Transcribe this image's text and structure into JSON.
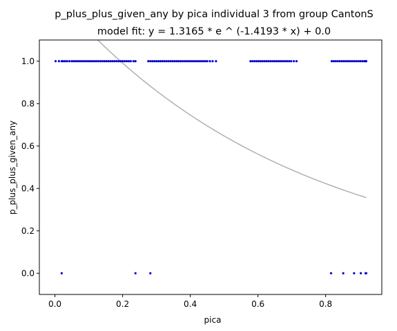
{
  "chart_data": {
    "type": "scatter",
    "title": "p_plus_plus_given_any by pica individual 3 from group CantonS",
    "subtitle": "model fit: y = 1.3165 * e ^ (-1.4193 * x) + 0.0",
    "xlabel": "pica",
    "ylabel": "p_plus_plus_given_any",
    "xlim": [
      -0.046,
      0.966
    ],
    "ylim": [
      -0.1,
      1.1
    ],
    "x_ticks": [
      0.0,
      0.2,
      0.4,
      0.6,
      0.8
    ],
    "x_tick_labels": [
      "0.0",
      "0.2",
      "0.4",
      "0.6",
      "0.8"
    ],
    "y_ticks": [
      0.0,
      0.2,
      0.4,
      0.6,
      0.8,
      1.0
    ],
    "y_tick_labels": [
      "0.0",
      "0.2",
      "0.4",
      "0.6",
      "0.8",
      "1.0"
    ],
    "grid": false,
    "legend": "none",
    "point_color": "#0000cc",
    "fit_color": "#b0b0b0",
    "fit": {
      "a": 1.3165,
      "b": -1.4193,
      "c": 0.0,
      "x_range": [
        0.0,
        0.92
      ]
    },
    "points": {
      "y1_x": [
        0.002,
        0.012,
        0.02,
        0.024,
        0.03,
        0.036,
        0.043,
        0.05,
        0.056,
        0.062,
        0.068,
        0.074,
        0.08,
        0.086,
        0.092,
        0.098,
        0.104,
        0.11,
        0.116,
        0.122,
        0.128,
        0.134,
        0.14,
        0.146,
        0.152,
        0.158,
        0.164,
        0.17,
        0.176,
        0.182,
        0.188,
        0.194,
        0.2,
        0.206,
        0.212,
        0.218,
        0.224,
        0.232,
        0.238,
        0.276,
        0.282,
        0.288,
        0.294,
        0.3,
        0.306,
        0.312,
        0.318,
        0.324,
        0.33,
        0.336,
        0.342,
        0.348,
        0.354,
        0.36,
        0.366,
        0.372,
        0.378,
        0.384,
        0.39,
        0.396,
        0.402,
        0.408,
        0.414,
        0.42,
        0.426,
        0.432,
        0.438,
        0.444,
        0.45,
        0.458,
        0.466,
        0.476,
        0.578,
        0.584,
        0.59,
        0.596,
        0.602,
        0.608,
        0.614,
        0.62,
        0.626,
        0.632,
        0.638,
        0.644,
        0.65,
        0.656,
        0.662,
        0.668,
        0.674,
        0.68,
        0.686,
        0.692,
        0.698,
        0.706,
        0.714,
        0.818,
        0.824,
        0.83,
        0.836,
        0.842,
        0.848,
        0.854,
        0.86,
        0.866,
        0.872,
        0.878,
        0.884,
        0.89,
        0.896,
        0.902,
        0.908,
        0.914,
        0.918,
        0.92
      ],
      "y0_x": [
        0.02,
        0.238,
        0.282,
        0.816,
        0.852,
        0.884,
        0.904,
        0.918,
        0.92
      ]
    }
  }
}
